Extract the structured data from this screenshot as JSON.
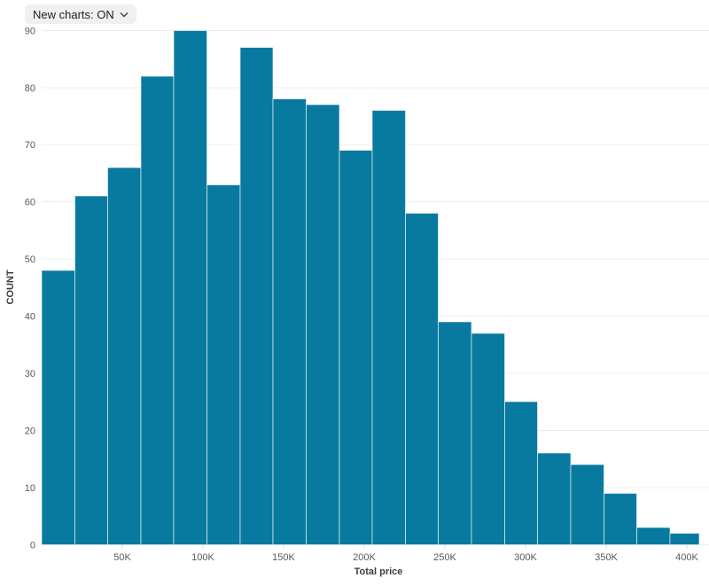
{
  "toolbar": {
    "new_charts_label": "New charts: ON"
  },
  "chart_data": {
    "type": "histogram",
    "title": "",
    "xlabel": "Total price",
    "ylabel": "COUNT",
    "bin_width": 20500,
    "x_domain": [
      0,
      407600
    ],
    "y_domain": [
      0,
      90
    ],
    "counts": [
      48,
      61,
      66,
      82,
      90,
      63,
      87,
      78,
      77,
      69,
      76,
      58,
      39,
      37,
      25,
      16,
      14,
      9,
      3,
      2
    ],
    "total_count": 1000,
    "x_ticks": [
      {
        "value": 50000,
        "label": "50K"
      },
      {
        "value": 100000,
        "label": "100K"
      },
      {
        "value": 150000,
        "label": "150K"
      },
      {
        "value": 200000,
        "label": "200K"
      },
      {
        "value": 250000,
        "label": "250K"
      },
      {
        "value": 300000,
        "label": "300K"
      },
      {
        "value": 350000,
        "label": "350K"
      },
      {
        "value": 400000,
        "label": "400K"
      }
    ],
    "y_ticks": [
      0,
      10,
      20,
      30,
      40,
      50,
      60,
      70,
      80,
      90
    ],
    "grid": "horizontal",
    "legend": "none",
    "colors": {
      "bar_fill": "#087AA0",
      "bar_stroke": "rgba(255,255,255,0.6)",
      "gridline": "#ececec",
      "tick_mark": "#d9d9d9",
      "tick_text": "#58595b",
      "axis_title_text": "#3e3e40"
    }
  }
}
